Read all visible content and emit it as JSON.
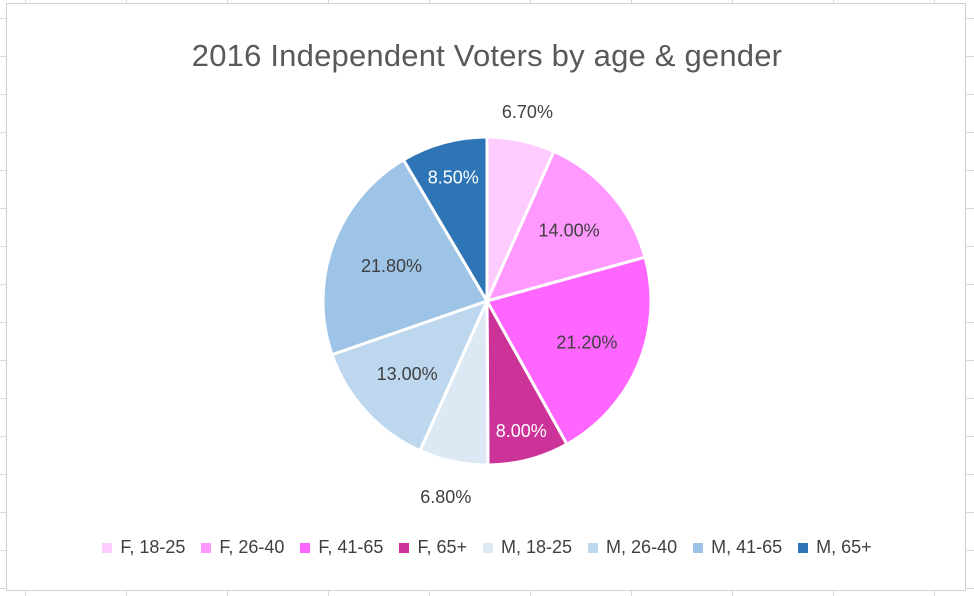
{
  "chart_data": {
    "type": "pie",
    "title": "2016 Independent Voters by age & gender",
    "categories": [
      "F, 18-25",
      "F, 26-40",
      "F, 41-65",
      "F, 65+",
      "M, 18-25",
      "M, 26-40",
      "M, 41-65",
      "M, 65+"
    ],
    "values": [
      6.7,
      14.0,
      21.2,
      8.0,
      6.8,
      13.0,
      21.8,
      8.5
    ],
    "data_labels": [
      "6.70%",
      "14.00%",
      "21.20%",
      "8.00%",
      "6.80%",
      "13.00%",
      "21.80%",
      "8.50%"
    ],
    "colors": [
      "#FFCCFF",
      "#FF99FF",
      "#FF66FF",
      "#CC3399",
      "#DDE8F5",
      "#BDD7EE",
      "#9DC3E6",
      "#2E75B6"
    ],
    "label_colors": [
      "#404040",
      "#404040",
      "#404040",
      "#ffffff",
      "#404040",
      "#404040",
      "#404040",
      "#ffffff"
    ],
    "legend_position": "bottom",
    "start_angle": "12 o'clock",
    "direction": "clockwise"
  }
}
